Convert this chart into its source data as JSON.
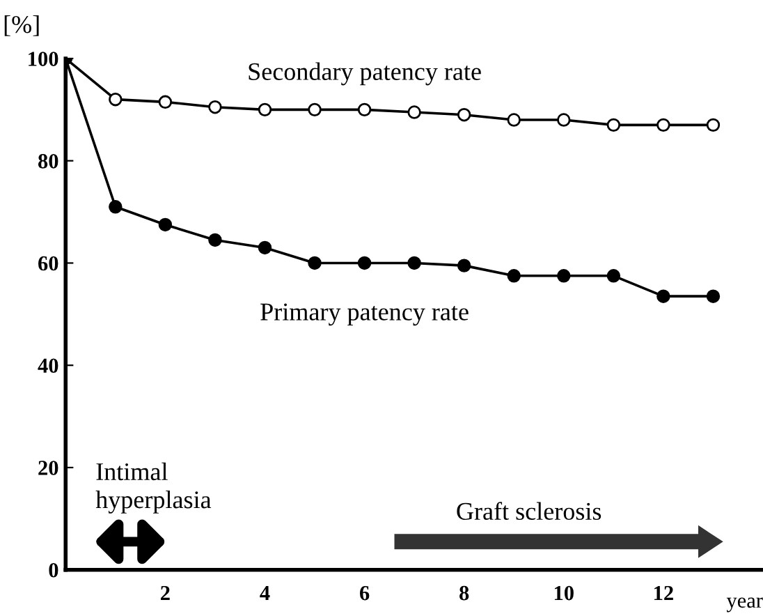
{
  "chart_data": {
    "type": "line",
    "ylabel": "[%]",
    "xlabel": "year",
    "x": [
      0,
      1,
      2,
      3,
      4,
      5,
      6,
      7,
      8,
      9,
      10,
      11,
      12,
      13
    ],
    "series": [
      {
        "name": "Secondary patency rate",
        "color": "#000000",
        "values": [
          100,
          92,
          91.5,
          90.5,
          90,
          90,
          90,
          89.5,
          89,
          88,
          88,
          87,
          87,
          87
        ]
      },
      {
        "name": "Primary patency rate",
        "color": "#000000",
        "values": [
          100,
          71,
          67.5,
          64.5,
          63,
          60,
          60,
          60,
          59.5,
          57.5,
          57.5,
          57.5,
          53.5,
          53.5
        ]
      }
    ],
    "xlim": [
      0,
      14
    ],
    "xticks": [
      2,
      4,
      6,
      8,
      10,
      12
    ],
    "ylim": [
      0,
      100
    ],
    "yticks": [
      0,
      20,
      40,
      60,
      80,
      100
    ],
    "marker": "circle",
    "line_style": "solid",
    "grid": false,
    "legend": false,
    "annotations": [
      "Intimal\nhyperplasia",
      "Graft sclerosis"
    ]
  }
}
